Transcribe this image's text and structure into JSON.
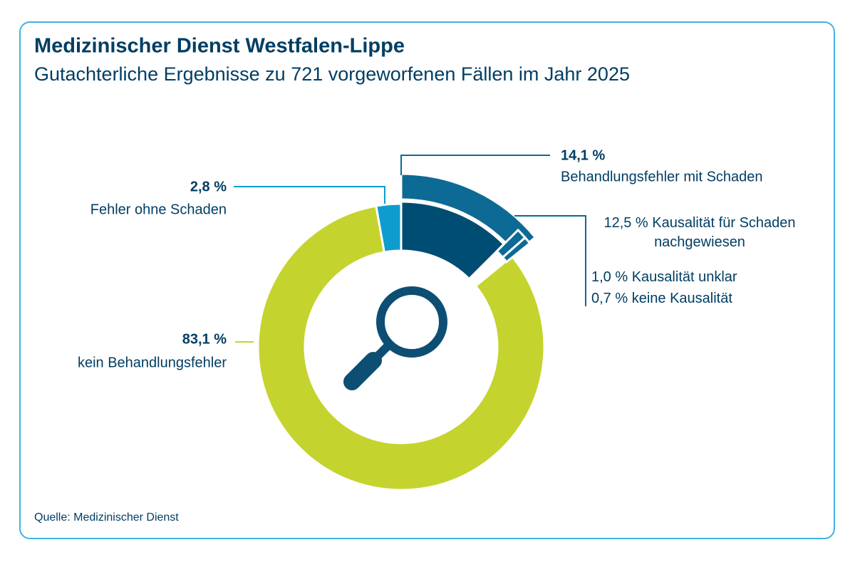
{
  "chart_data": {
    "type": "pie",
    "title": "Medizinischer Dienst Westfalen-Lippe",
    "subtitle": "Gutachterliche Ergebnisse zu 721 vorgeworfenen Fällen im Jahr 2025",
    "source": "Quelle: Medizinischer Dienst",
    "categories": [
      "Behandlungsfehler mit Schaden",
      "kein Behandlungsfehler",
      "Fehler ohne Schaden"
    ],
    "values": [
      14.1,
      83.1,
      2.8
    ],
    "value_labels": [
      "14,1 %",
      "83,1 %",
      "2,8 %"
    ],
    "colors": [
      "#0d6a95",
      "#c5d32e",
      "#0e9ccf"
    ],
    "breakdown": {
      "categories": [
        "Kausalität für Schaden nachgewiesen",
        "Kausalität unklar",
        "keine Kausalität"
      ],
      "values": [
        12.5,
        1.0,
        0.7
      ],
      "value_labels": [
        "12,5 %",
        "1,0 %",
        "0,7 %"
      ],
      "colors": [
        "#004d73",
        "#0d6a95",
        "#0d6a95"
      ]
    }
  }
}
